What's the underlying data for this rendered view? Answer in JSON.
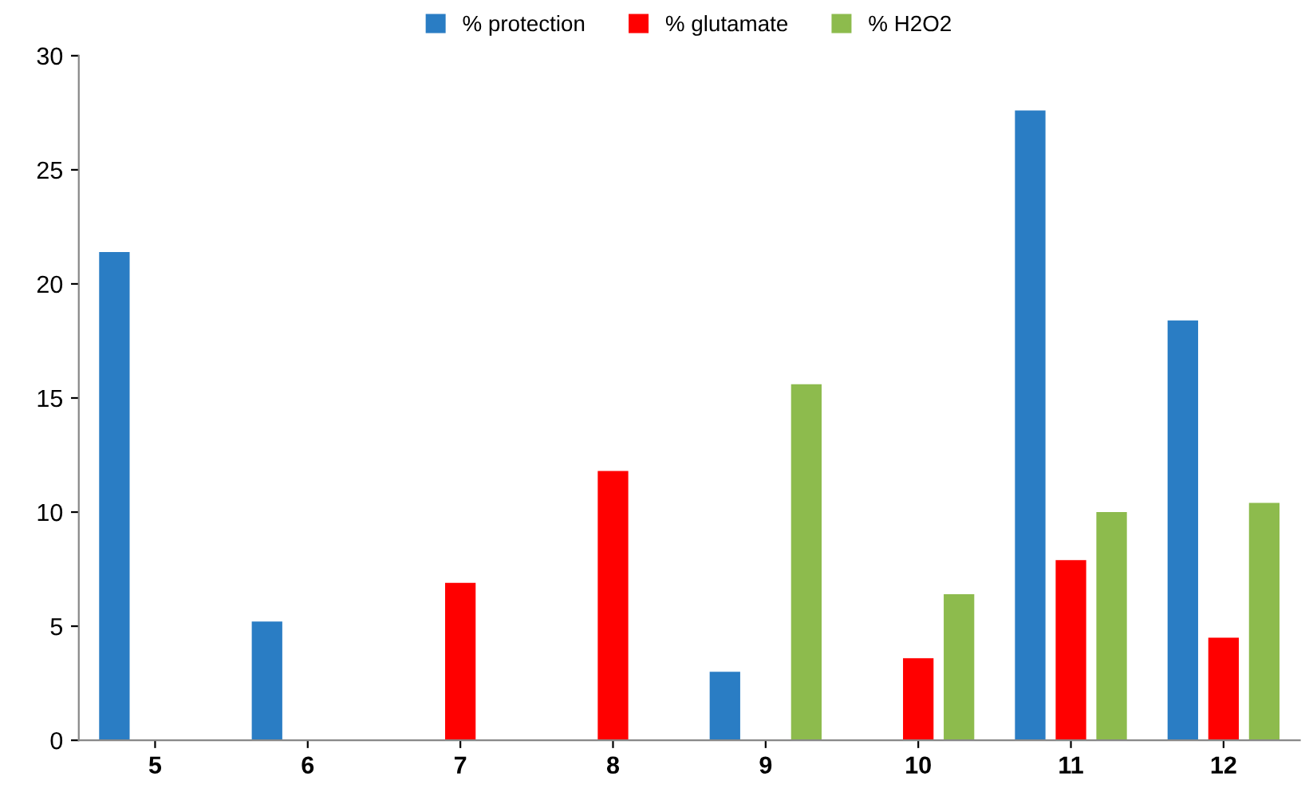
{
  "chart_data": {
    "type": "bar",
    "categories": [
      "5",
      "6",
      "7",
      "8",
      "9",
      "10",
      "11",
      "12"
    ],
    "series": [
      {
        "name": "% protection",
        "color": "#2a7dc4",
        "values": [
          21.4,
          5.2,
          0,
          0,
          3.0,
          0,
          27.6,
          18.4
        ]
      },
      {
        "name": "% glutamate",
        "color": "#ff0000",
        "values": [
          0,
          0,
          6.9,
          11.8,
          0,
          3.6,
          7.9,
          4.5
        ]
      },
      {
        "name": "% H2O2",
        "color": "#8dbb4d",
        "values": [
          0,
          0,
          0,
          0,
          15.6,
          6.4,
          10.0,
          10.4
        ]
      }
    ],
    "ylim": [
      0,
      30
    ],
    "yticks": [
      0,
      5,
      10,
      15,
      20,
      25,
      30
    ],
    "grid": false,
    "legend": "top"
  }
}
